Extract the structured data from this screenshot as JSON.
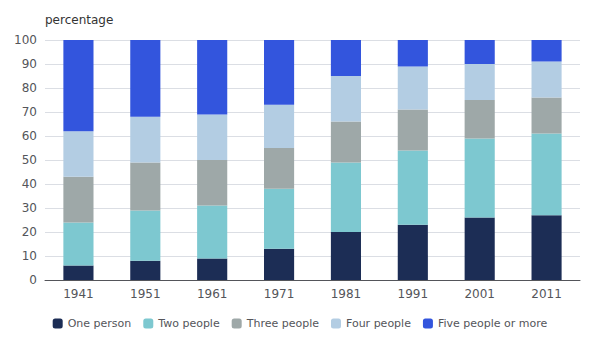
{
  "chart_data": {
    "type": "bar",
    "ylabel": "percentage",
    "categories": [
      "1941",
      "1951",
      "1961",
      "1971",
      "1981",
      "1991",
      "2001",
      "2011"
    ],
    "series": [
      {
        "name": "One person",
        "color": "#1c2d55",
        "values": [
          6,
          8,
          9,
          13,
          20,
          23,
          26,
          27
        ]
      },
      {
        "name": "Two people",
        "color": "#7dc8d0",
        "values": [
          18,
          21,
          22,
          25,
          29,
          31,
          33,
          34
        ]
      },
      {
        "name": "Three people",
        "color": "#9ea8a8",
        "values": [
          19,
          20,
          19,
          17,
          17,
          17,
          16,
          15
        ]
      },
      {
        "name": "Four people",
        "color": "#b3cde3",
        "values": [
          19,
          19,
          19,
          18,
          19,
          18,
          15,
          15
        ]
      },
      {
        "name": "Five people or more",
        "color": "#3355dd",
        "values": [
          38,
          32,
          31,
          27,
          15,
          11,
          10,
          9
        ]
      }
    ],
    "stacked": true,
    "ylim": [
      0,
      100
    ],
    "yticks": [
      0,
      10,
      20,
      30,
      40,
      50,
      60,
      70,
      80,
      90,
      100
    ],
    "grid": true,
    "legend": "bottom"
  }
}
